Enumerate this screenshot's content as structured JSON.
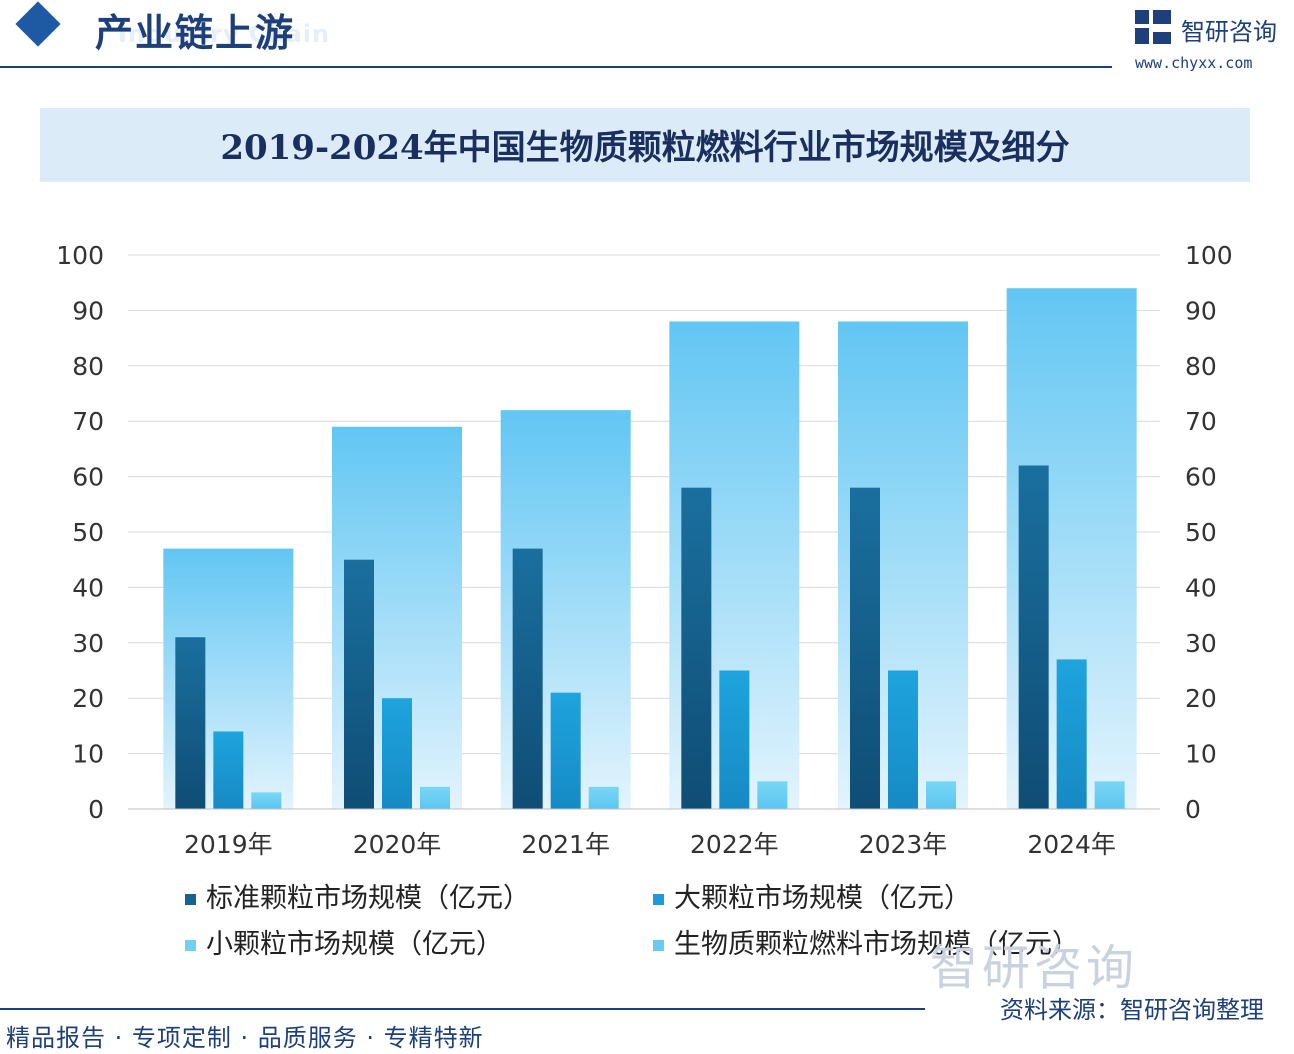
{
  "header": {
    "section_title": "产业链上游",
    "section_subtitle": "Industry Chain",
    "brand_name": "智研咨询",
    "brand_url": "www.chyxx.com"
  },
  "colors": {
    "total": "#6cc9f4",
    "standard": "#16638f",
    "large": "#1c9bd6",
    "small": "#6fd0f4",
    "navy": "#1d3f7a"
  },
  "chart_data": {
    "type": "bar",
    "title": "2019-2024年中国生物质颗粒燃料行业市场规模及细分",
    "categories": [
      "2019年",
      "2020年",
      "2021年",
      "2022年",
      "2023年",
      "2024年"
    ],
    "series": [
      {
        "name": "标准颗粒市场规模（亿元）",
        "values": [
          31,
          45,
          47,
          58,
          58,
          62
        ],
        "axis": "left"
      },
      {
        "name": "大颗粒市场规模（亿元）",
        "values": [
          14,
          20,
          21,
          25,
          25,
          27
        ],
        "axis": "left"
      },
      {
        "name": "小颗粒市场规模（亿元）",
        "values": [
          3,
          4,
          4,
          5,
          5,
          5
        ],
        "axis": "left"
      },
      {
        "name": "生物质颗粒燃料市场规模（亿元）",
        "values": [
          47,
          69,
          72,
          88,
          88,
          94
        ],
        "axis": "right"
      }
    ],
    "ylim": [
      0,
      100
    ],
    "y2lim": [
      0,
      100
    ],
    "yticks": [
      0,
      10,
      20,
      30,
      40,
      50,
      60,
      70,
      80,
      90,
      100
    ],
    "grid": true,
    "legend_position": "bottom"
  },
  "footer": {
    "slogan": "精品报告 · 专项定制 · 品质服务 · 专精特新",
    "source": "资料来源：智研咨询整理",
    "watermark": "智研咨询"
  }
}
